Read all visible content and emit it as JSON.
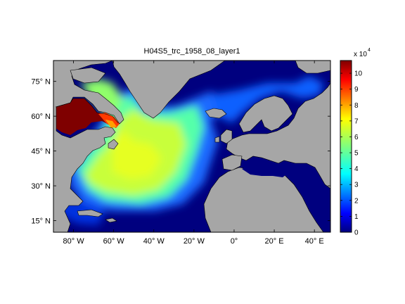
{
  "chart_data": {
    "type": "heatmap",
    "title": "H04S5_trc_1958_08_layer1",
    "x_tick_labels": [
      "80° W",
      "60° W",
      "40° W",
      "20° W",
      "0°",
      "20° E",
      "40° E"
    ],
    "x_ticks": [
      -80,
      -60,
      -40,
      -20,
      0,
      20,
      40
    ],
    "y_tick_labels": [
      "15° N",
      "30° N",
      "45° N",
      "60° N",
      "75° N"
    ],
    "y_ticks": [
      15,
      30,
      45,
      60,
      75
    ],
    "xlim": [
      -90,
      48
    ],
    "ylim": [
      10,
      84
    ],
    "colorbar": {
      "multiplier_label": "x 10",
      "multiplier_exponent": "4",
      "tick_labels": [
        "0",
        "1",
        "2",
        "3",
        "4",
        "5",
        "6",
        "7",
        "8",
        "9",
        "10"
      ],
      "range": [
        0,
        10.8
      ],
      "colormap": "jet"
    },
    "colors": {
      "land": "#a6a6a6",
      "ocean_zero": "#00007f",
      "coastline": "#000000"
    }
  }
}
